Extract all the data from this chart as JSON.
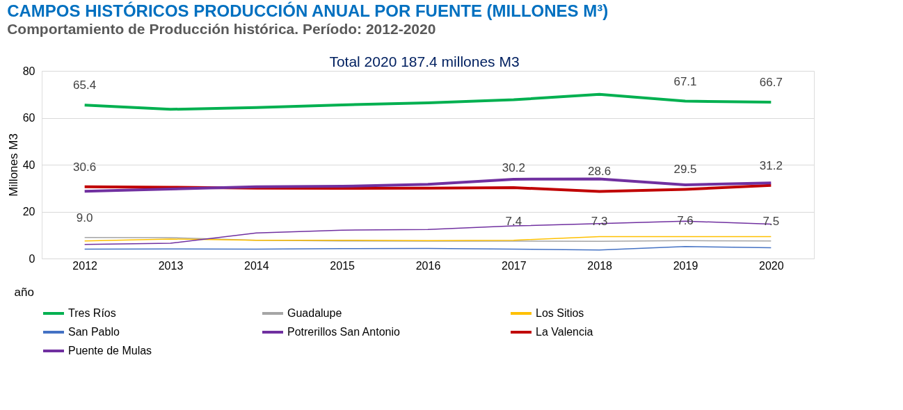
{
  "chart_data": {
    "type": "line",
    "title": "CAMPOS HISTÓRICOS PRODUCCIÓN ANUAL POR FUENTE (MILLONES M³)",
    "subtitle": "Comportamiento de Producción histórica. Período: 2012-2020",
    "annotations": [
      "Total 2020  187.4 millones M3"
    ],
    "xlabel": "año",
    "ylabel": "Millones M3",
    "categories": [
      "2012",
      "2013",
      "2014",
      "2015",
      "2016",
      "2017",
      "2018",
      "2019",
      "2020"
    ],
    "ylim": [
      0,
      80
    ],
    "yticks": [
      0,
      20,
      40,
      60,
      80
    ],
    "grid": "y",
    "legend": "bottom",
    "marker": "none",
    "line_style": "solid",
    "series": [
      {
        "name": "Tres Ríos",
        "color": "#00b050",
        "values": [
          65.4,
          63.6,
          64.4,
          65.5,
          66.4,
          67.7,
          70.0,
          67.1,
          66.7
        ],
        "value_labels": [
          "65.4",
          null,
          null,
          null,
          null,
          null,
          null,
          "67.1",
          "66.7"
        ]
      },
      {
        "name": "Guadalupe",
        "color": "#a5a5a5",
        "values": [
          9.0,
          8.9,
          7.8,
          7.5,
          7.4,
          7.4,
          7.3,
          7.6,
          7.5
        ],
        "value_labels": [
          "9.0",
          null,
          null,
          null,
          null,
          "7.4",
          "7.3",
          "7.6",
          "7.5"
        ]
      },
      {
        "name": "Los Sitios",
        "color": "#ffc000",
        "values": [
          7.5,
          8.3,
          7.8,
          7.8,
          7.6,
          7.8,
          9.3,
          9.3,
          9.3
        ]
      },
      {
        "name": "San Pablo",
        "color": "#4472c4",
        "values": [
          4.0,
          4.1,
          4.0,
          4.2,
          4.3,
          4.0,
          3.6,
          5.1,
          4.6
        ]
      },
      {
        "name": "Potrerillos San Antonio",
        "color": "#7030a0",
        "values": [
          6.0,
          6.5,
          10.9,
          12.1,
          12.4,
          13.9,
          14.9,
          15.9,
          14.7
        ]
      },
      {
        "name": "La Valencia",
        "color": "#c00000",
        "values": [
          30.6,
          30.4,
          30.0,
          29.9,
          30.0,
          30.2,
          28.6,
          29.5,
          31.2
        ],
        "value_labels": [
          "30.6",
          null,
          null,
          null,
          null,
          "30.2",
          "28.6",
          "29.5",
          "31.2"
        ]
      },
      {
        "name": "Puente de Mulas",
        "color": "#7030a0",
        "values": [
          28.7,
          29.6,
          30.6,
          30.8,
          31.6,
          33.8,
          33.9,
          31.4,
          32.2
        ]
      }
    ]
  }
}
